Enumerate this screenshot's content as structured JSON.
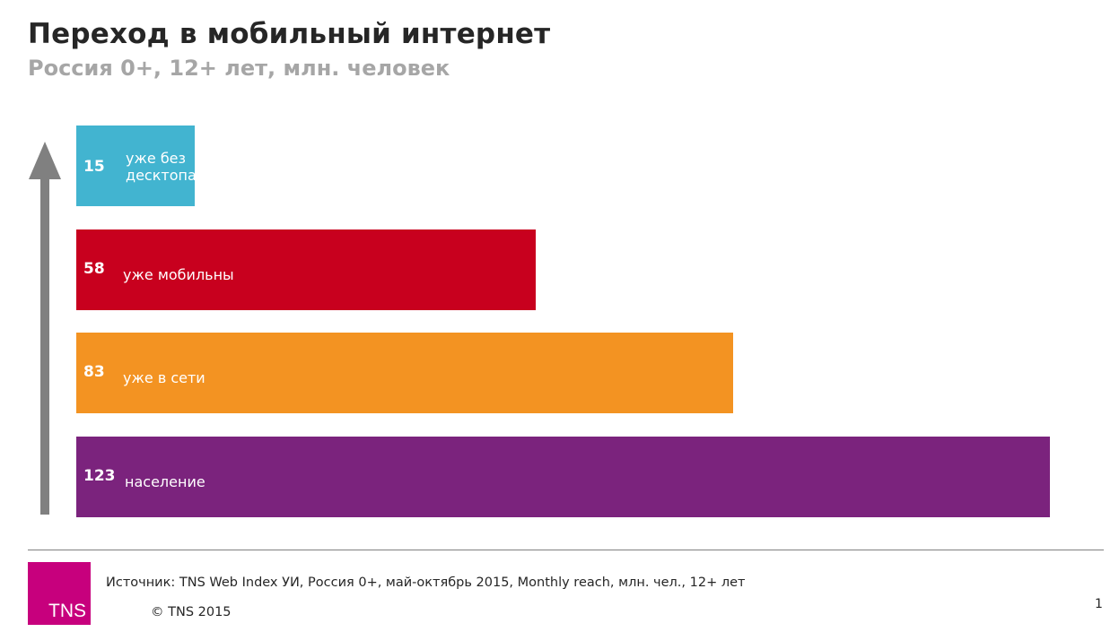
{
  "header": {
    "title": "Переход в мобильный интернет",
    "subtitle": "Россия 0+, 12+ лет, млн. человек"
  },
  "chart_data": {
    "type": "bar",
    "orientation": "horizontal",
    "title": "",
    "categories": [
      "уже без десктопа",
      "уже мобильны",
      "уже в сети",
      "население"
    ],
    "label_lines": [
      [
        "уже без",
        "десктопа"
      ],
      [
        "уже мобильны"
      ],
      [
        "уже в сети"
      ],
      [
        "население"
      ]
    ],
    "values": [
      15,
      58,
      83,
      123
    ],
    "colors": [
      "#42b4d0",
      "#c8001e",
      "#f39322",
      "#7b237d"
    ],
    "xlim": [
      0,
      123
    ],
    "grid": false,
    "legend": "none",
    "arrow_color": "#808080"
  },
  "footer": {
    "source": "Источник: TNS Web Index УИ, Россия 0+, май-октябрь 2015, Monthly reach, млн. чел., 12+ лет",
    "copyright": "© TNS 2015",
    "page_number": "1",
    "logo_text": "TNS",
    "logo_color": "#c7007d"
  }
}
